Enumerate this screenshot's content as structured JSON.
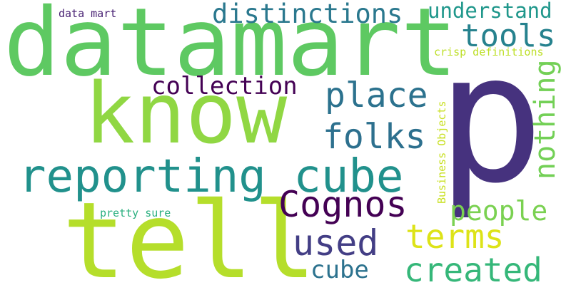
{
  "words": [
    {
      "text": "p",
      "color": "#46327e"
    },
    {
      "text": "datamart",
      "color": "#5ec962"
    },
    {
      "text": "know",
      "color": "#90d743"
    },
    {
      "text": "tell",
      "color": "#b5de2b"
    },
    {
      "text": "reporting cube",
      "color": "#21918c"
    },
    {
      "text": "distinctions",
      "color": "#2a788e"
    },
    {
      "text": "understand",
      "color": "#1f978b"
    },
    {
      "text": "tools",
      "color": "#26828e"
    },
    {
      "text": "collection",
      "color": "#440154"
    },
    {
      "text": "place",
      "color": "#2c728e"
    },
    {
      "text": "folks",
      "color": "#2d708e"
    },
    {
      "text": "nothing",
      "color": "#73d056"
    },
    {
      "text": "Cognos",
      "color": "#440154"
    },
    {
      "text": "people",
      "color": "#7ad151"
    },
    {
      "text": "terms",
      "color": "#dde318"
    },
    {
      "text": "used",
      "color": "#433e85"
    },
    {
      "text": "created",
      "color": "#35b779"
    },
    {
      "text": "cube",
      "color": "#2c728e"
    },
    {
      "text": "data mart",
      "color": "#482173"
    },
    {
      "text": "crisp definitions",
      "color": "#bddf26"
    },
    {
      "text": "Business Objects",
      "color": "#c8e020"
    },
    {
      "text": "pretty sure",
      "color": "#29af7f"
    }
  ]
}
